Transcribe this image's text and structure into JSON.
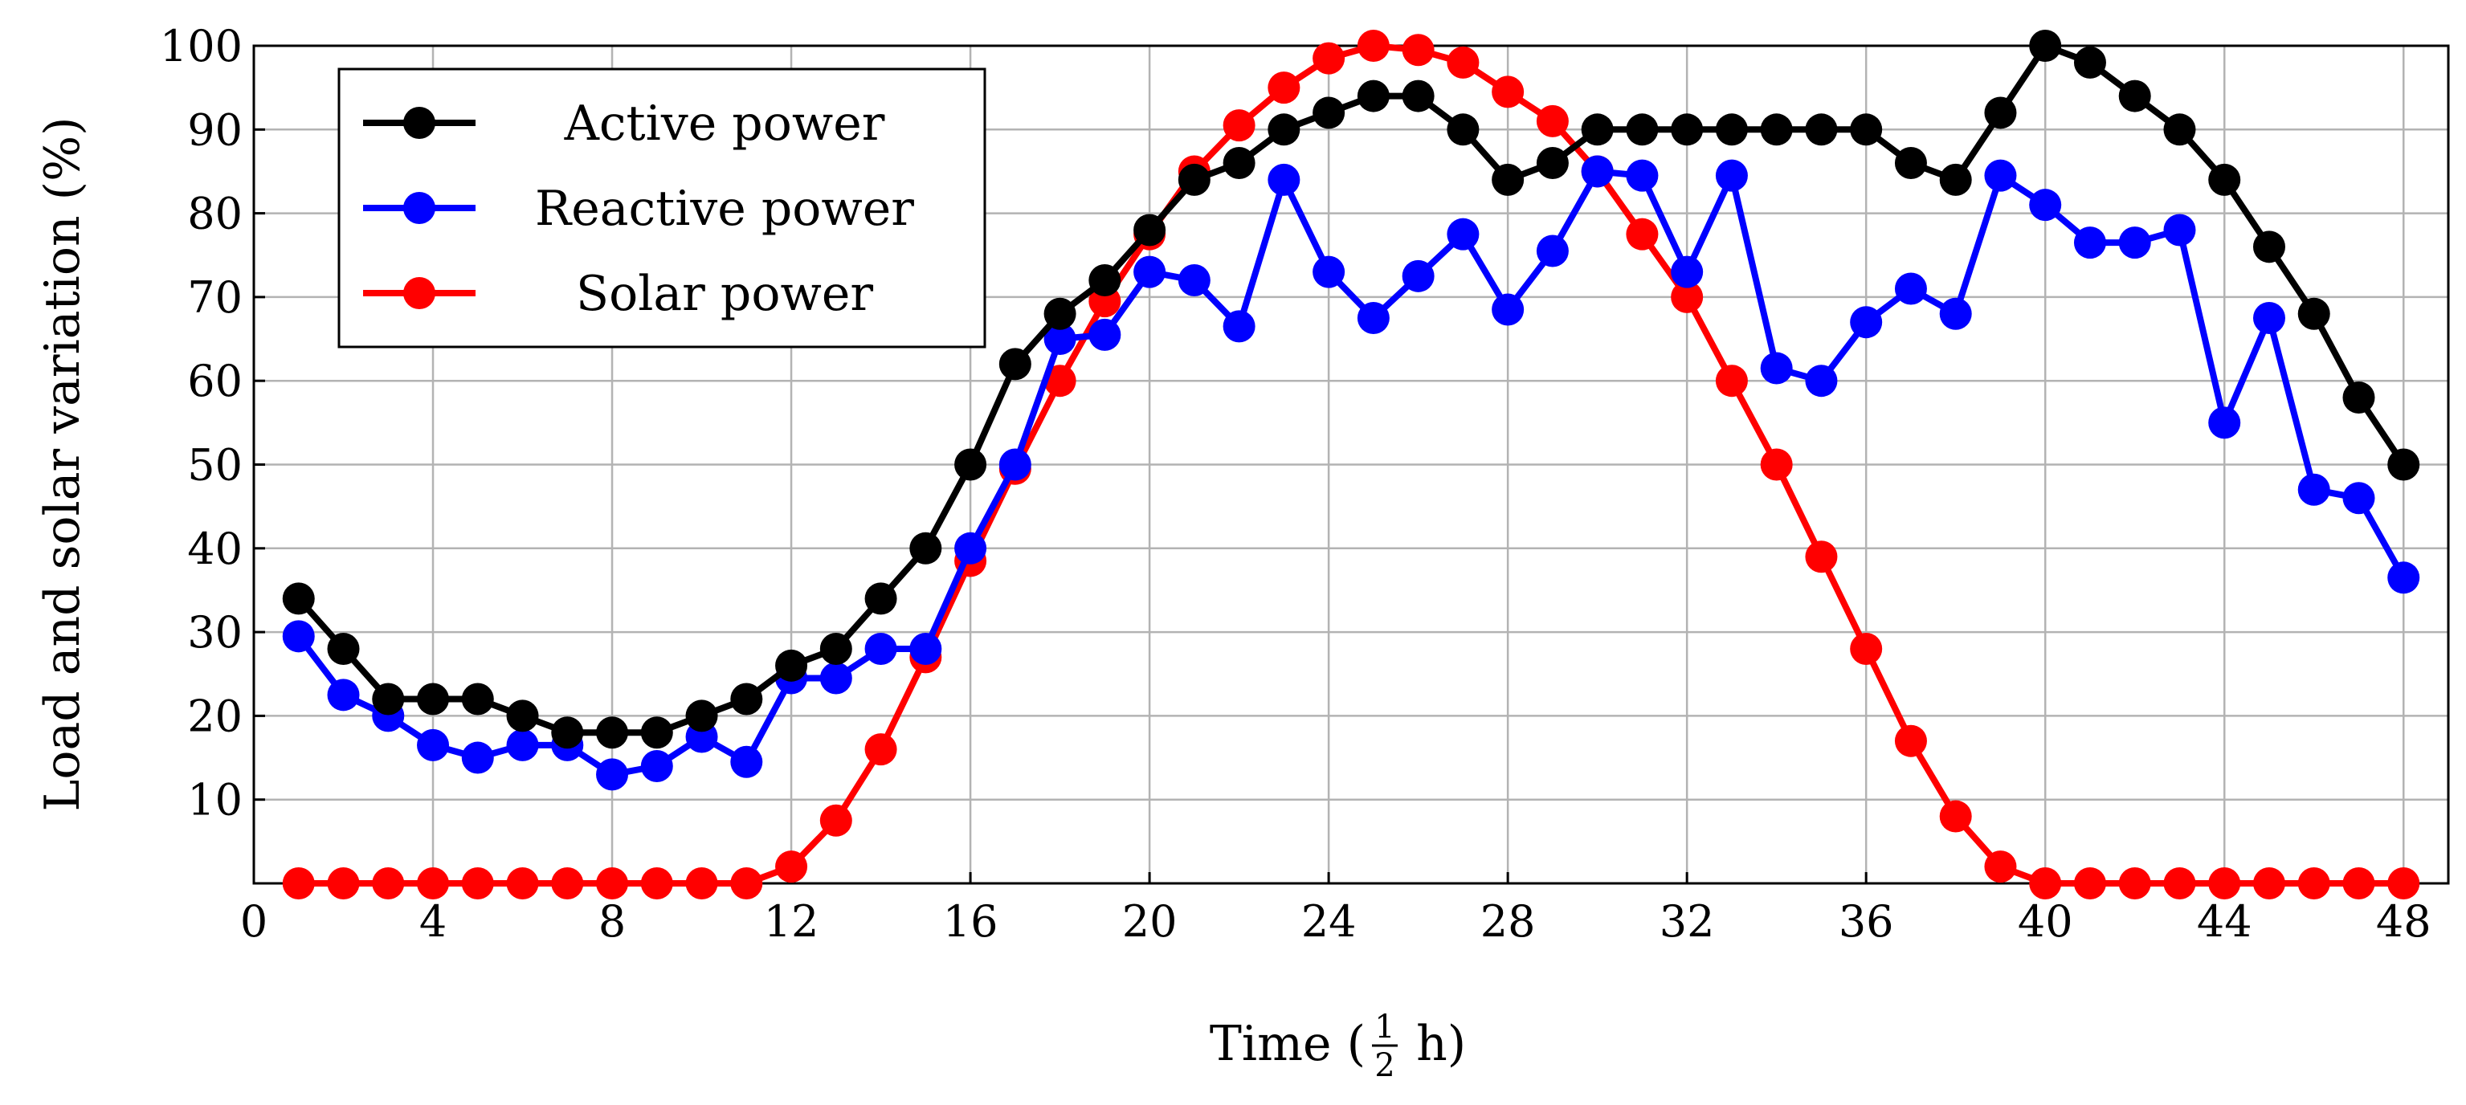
{
  "chart_data": {
    "type": "line",
    "title": "",
    "xlabel": "Time (",
    "xlabel_fraction_num": "1",
    "xlabel_fraction_den": "2",
    "xlabel_suffix": " h)",
    "ylabel": "Load and solar variation (%)",
    "xlim": [
      0,
      49
    ],
    "ylim": [
      0,
      100
    ],
    "x_ticks": [
      0,
      4,
      8,
      12,
      16,
      20,
      24,
      28,
      32,
      36,
      40,
      44,
      48
    ],
    "y_ticks": [
      10,
      20,
      30,
      40,
      50,
      60,
      70,
      80,
      90,
      100
    ],
    "grid": true,
    "legend_position": "top-left",
    "x": [
      1,
      2,
      3,
      4,
      5,
      6,
      7,
      8,
      9,
      10,
      11,
      12,
      13,
      14,
      15,
      16,
      17,
      18,
      19,
      20,
      21,
      22,
      23,
      24,
      25,
      26,
      27,
      28,
      29,
      30,
      31,
      32,
      33,
      34,
      35,
      36,
      37,
      38,
      39,
      40,
      41,
      42,
      43,
      44,
      45,
      46,
      47,
      48
    ],
    "series": [
      {
        "name": "Active power",
        "color": "#000000",
        "values": [
          34,
          28,
          22,
          22,
          22,
          20,
          18,
          18,
          18,
          20,
          22,
          26,
          28,
          34,
          40,
          50,
          62,
          68,
          72,
          78,
          84,
          86,
          90,
          92,
          94,
          94,
          90,
          84,
          86,
          90,
          90,
          90,
          90,
          90,
          90,
          90,
          86,
          84,
          92,
          100,
          98,
          94,
          90,
          84,
          76,
          68,
          58,
          50
        ]
      },
      {
        "name": "Reactive power",
        "color": "#0000ff",
        "values": [
          29.5,
          22.5,
          20,
          16.5,
          15,
          16.5,
          16.5,
          13,
          14,
          17.5,
          14.5,
          24.5,
          24.5,
          28,
          28,
          40,
          50,
          65,
          65.5,
          73,
          72,
          66.5,
          84,
          73,
          67.5,
          72.5,
          77.5,
          68.5,
          75.5,
          85,
          84.5,
          73,
          84.5,
          61.5,
          60,
          67,
          71,
          68,
          84.5,
          81,
          76.5,
          76.5,
          78,
          55,
          67.5,
          47,
          46,
          36.5
        ]
      },
      {
        "name": "Solar power",
        "color": "#ff0000",
        "values": [
          0,
          0,
          0,
          0,
          0,
          0,
          0,
          0,
          0,
          0,
          0,
          2,
          7.5,
          16,
          27,
          38.5,
          49.5,
          60,
          69.5,
          77.5,
          85,
          90.5,
          95,
          98.5,
          100,
          99.5,
          98,
          94.5,
          91,
          85,
          77.5,
          70,
          60,
          50,
          39,
          28,
          17,
          8,
          2,
          0,
          0,
          0,
          0,
          0,
          0,
          0,
          0,
          0
        ]
      }
    ]
  }
}
